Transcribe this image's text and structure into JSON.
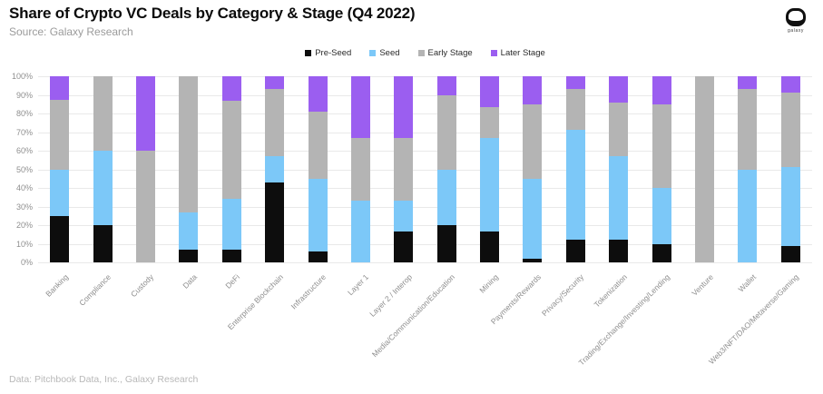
{
  "header": {
    "title": "Share of Crypto VC Deals by Category & Stage (Q4 2022)",
    "source": "Source: Galaxy Research",
    "logo_text": "galaxy"
  },
  "footer": {
    "note": "Data: Pitchbook Data, Inc., Galaxy Research"
  },
  "colors": {
    "pre_seed": "#0d0d0d",
    "seed": "#7cc8f8",
    "early_stage": "#b4b4b4",
    "later_stage": "#9b5ef0",
    "gridline": "#e9e9e9",
    "axis_text": "#8f8f8f"
  },
  "chart_data": {
    "type": "bar",
    "stacked": true,
    "title": "Share of Crypto VC Deals by Category & Stage (Q4 2022)",
    "xlabel": "",
    "ylabel": "",
    "ylim": [
      0,
      100
    ],
    "yticks": [
      0,
      10,
      20,
      30,
      40,
      50,
      60,
      70,
      80,
      90,
      100
    ],
    "ytick_suffix": "%",
    "grid": true,
    "legend_position": "top",
    "categories": [
      "Banking",
      "Compliance",
      "Custody",
      "Data",
      "DeFi",
      "Enterprise Blockchain",
      "Infrastructure",
      "Layer 1",
      "Layer 2 / Interop",
      "Media/Communication/Education",
      "Mining",
      "Payments/Rewards",
      "Privacy/Security",
      "Tokenization",
      "Trading/Exchange/Investing/Lending",
      "Venture",
      "Wallet",
      "Web3/NFT/DAO/Metaverse/Gaming"
    ],
    "series": [
      {
        "name": "Pre-Seed",
        "color": "#0d0d0d",
        "values": [
          25,
          20,
          0,
          7,
          7,
          43,
          6,
          0,
          16.7,
          20,
          16.7,
          2,
          12,
          12,
          10,
          0,
          0,
          9
        ]
      },
      {
        "name": "Seed",
        "color": "#7cc8f8",
        "values": [
          25,
          40,
          0,
          20,
          27,
          14,
          39,
          33.3,
          16.6,
          30,
          50,
          43,
          59,
          45,
          30,
          0,
          50,
          42
        ]
      },
      {
        "name": "Early Stage",
        "color": "#b4b4b4",
        "values": [
          37.5,
          40,
          60,
          73,
          53,
          36,
          36,
          33.4,
          33.4,
          40,
          16.6,
          40,
          22,
          29,
          45,
          100,
          43,
          40
        ]
      },
      {
        "name": "Later Stage",
        "color": "#9b5ef0",
        "values": [
          12.5,
          0,
          40,
          0,
          13,
          7,
          19,
          33.3,
          33.3,
          10,
          16.7,
          15,
          7,
          14,
          15,
          0,
          7,
          9
        ]
      }
    ]
  }
}
